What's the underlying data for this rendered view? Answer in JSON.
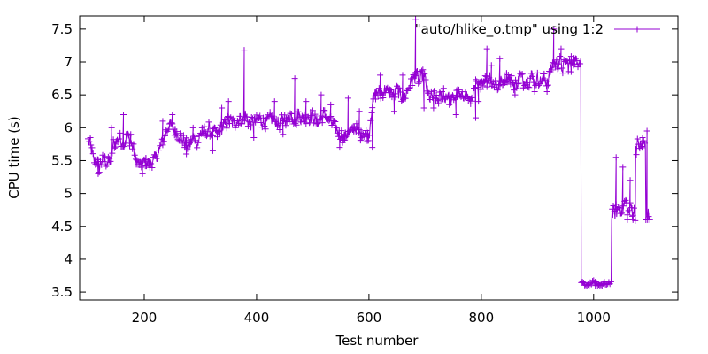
{
  "chart_data": {
    "type": "line",
    "xlabel": "Test number",
    "ylabel": "CPU time (s)",
    "xlim": [
      85,
      1150
    ],
    "ylim": [
      3.38,
      7.7
    ],
    "xticks": [
      200,
      400,
      600,
      800,
      1000
    ],
    "yticks": [
      3.5,
      4,
      4.5,
      5,
      5.5,
      6,
      6.5,
      7,
      7.5
    ],
    "ytick_labels": [
      "3.5",
      "4",
      "4.5",
      "5",
      "5.5",
      "6",
      "6.5",
      "7",
      "7.5"
    ],
    "grid": false,
    "legend_position": "top-right",
    "series": [
      {
        "name": "\"auto/hlike_o.tmp\" using 1:2",
        "color": "#9400d3",
        "marker": "plus",
        "points": [
          [
            100,
            5.8
          ],
          [
            105,
            5.7
          ],
          [
            110,
            5.5
          ],
          [
            115,
            5.5
          ],
          [
            120,
            5.4
          ],
          [
            125,
            5.5
          ],
          [
            130,
            5.5
          ],
          [
            135,
            5.45
          ],
          [
            140,
            5.5
          ],
          [
            145,
            5.75
          ],
          [
            150,
            5.8
          ],
          [
            155,
            5.85
          ],
          [
            160,
            5.8
          ],
          [
            165,
            5.75
          ],
          [
            170,
            5.9
          ],
          [
            175,
            5.8
          ],
          [
            180,
            5.7
          ],
          [
            185,
            5.5
          ],
          [
            190,
            5.45
          ],
          [
            195,
            5.4
          ],
          [
            200,
            5.5
          ],
          [
            205,
            5.5
          ],
          [
            210,
            5.45
          ],
          [
            215,
            5.5
          ],
          [
            220,
            5.55
          ],
          [
            225,
            5.6
          ],
          [
            230,
            5.75
          ],
          [
            235,
            5.85
          ],
          [
            240,
            5.95
          ],
          [
            245,
            6.05
          ],
          [
            250,
            6.0
          ],
          [
            255,
            5.95
          ],
          [
            260,
            5.9
          ],
          [
            265,
            5.85
          ],
          [
            270,
            5.8
          ],
          [
            275,
            5.75
          ],
          [
            280,
            5.7
          ],
          [
            285,
            5.8
          ],
          [
            290,
            5.85
          ],
          [
            295,
            5.75
          ],
          [
            300,
            5.9
          ],
          [
            305,
            5.95
          ],
          [
            310,
            5.9
          ],
          [
            315,
            6.0
          ],
          [
            320,
            5.9
          ],
          [
            325,
            5.95
          ],
          [
            330,
            5.9
          ],
          [
            335,
            5.95
          ],
          [
            340,
            6.0
          ],
          [
            345,
            6.05
          ],
          [
            350,
            6.1
          ],
          [
            355,
            6.1
          ],
          [
            360,
            6.05
          ],
          [
            365,
            6.1
          ],
          [
            370,
            6.15
          ],
          [
            375,
            6.1
          ],
          [
            380,
            6.2
          ],
          [
            385,
            6.1
          ],
          [
            390,
            6.05
          ],
          [
            395,
            6.1
          ],
          [
            400,
            6.1
          ],
          [
            405,
            6.15
          ],
          [
            410,
            6.1
          ],
          [
            415,
            6.05
          ],
          [
            420,
            6.1
          ],
          [
            425,
            6.15
          ],
          [
            430,
            6.1
          ],
          [
            435,
            6.1
          ],
          [
            440,
            6.05
          ],
          [
            445,
            6.1
          ],
          [
            450,
            6.15
          ],
          [
            455,
            6.1
          ],
          [
            460,
            6.2
          ],
          [
            465,
            6.15
          ],
          [
            470,
            6.1
          ],
          [
            475,
            6.2
          ],
          [
            480,
            6.15
          ],
          [
            485,
            6.1
          ],
          [
            490,
            6.2
          ],
          [
            495,
            6.15
          ],
          [
            500,
            6.2
          ],
          [
            505,
            6.1
          ],
          [
            510,
            6.1
          ],
          [
            515,
            6.15
          ],
          [
            520,
            6.2
          ],
          [
            525,
            6.15
          ],
          [
            530,
            6.1
          ],
          [
            535,
            6.05
          ],
          [
            540,
            6.0
          ],
          [
            545,
            5.95
          ],
          [
            550,
            5.9
          ],
          [
            555,
            5.85
          ],
          [
            560,
            5.9
          ],
          [
            565,
            5.9
          ],
          [
            570,
            5.95
          ],
          [
            575,
            6.0
          ],
          [
            580,
            5.95
          ],
          [
            585,
            5.9
          ],
          [
            590,
            5.95
          ],
          [
            595,
            5.9
          ],
          [
            600,
            5.9
          ],
          [
            605,
            6.3
          ],
          [
            610,
            6.5
          ],
          [
            615,
            6.55
          ],
          [
            620,
            6.5
          ],
          [
            625,
            6.55
          ],
          [
            630,
            6.6
          ],
          [
            635,
            6.5
          ],
          [
            640,
            6.55
          ],
          [
            645,
            6.5
          ],
          [
            650,
            6.6
          ],
          [
            655,
            6.5
          ],
          [
            660,
            6.45
          ],
          [
            665,
            6.5
          ],
          [
            670,
            6.6
          ],
          [
            675,
            6.7
          ],
          [
            680,
            6.75
          ],
          [
            685,
            6.8
          ],
          [
            690,
            6.7
          ],
          [
            695,
            6.8
          ],
          [
            700,
            6.75
          ],
          [
            705,
            6.5
          ],
          [
            710,
            6.45
          ],
          [
            715,
            6.5
          ],
          [
            720,
            6.4
          ],
          [
            725,
            6.45
          ],
          [
            730,
            6.5
          ],
          [
            735,
            6.45
          ],
          [
            740,
            6.5
          ],
          [
            745,
            6.4
          ],
          [
            750,
            6.45
          ],
          [
            755,
            6.5
          ],
          [
            760,
            6.5
          ],
          [
            765,
            6.45
          ],
          [
            770,
            6.55
          ],
          [
            775,
            6.5
          ],
          [
            780,
            6.4
          ],
          [
            785,
            6.5
          ],
          [
            790,
            6.65
          ],
          [
            795,
            6.6
          ],
          [
            800,
            6.7
          ],
          [
            805,
            6.75
          ],
          [
            810,
            6.7
          ],
          [
            815,
            6.8
          ],
          [
            820,
            6.65
          ],
          [
            825,
            6.7
          ],
          [
            830,
            6.6
          ],
          [
            835,
            6.7
          ],
          [
            840,
            6.75
          ],
          [
            845,
            6.8
          ],
          [
            850,
            6.75
          ],
          [
            855,
            6.7
          ],
          [
            860,
            6.65
          ],
          [
            865,
            6.7
          ],
          [
            870,
            6.8
          ],
          [
            875,
            6.7
          ],
          [
            880,
            6.75
          ],
          [
            885,
            6.7
          ],
          [
            890,
            6.8
          ],
          [
            895,
            6.7
          ],
          [
            900,
            6.75
          ],
          [
            905,
            6.7
          ],
          [
            910,
            6.75
          ],
          [
            915,
            6.7
          ],
          [
            920,
            6.75
          ],
          [
            925,
            6.9
          ],
          [
            930,
            7.0
          ],
          [
            935,
            6.95
          ],
          [
            940,
            7.0
          ],
          [
            945,
            6.9
          ],
          [
            950,
            7.0
          ],
          [
            955,
            6.95
          ],
          [
            960,
            7.0
          ],
          [
            965,
            7.05
          ],
          [
            970,
            7.0
          ],
          [
            975,
            7.05
          ],
          [
            978,
            3.65
          ],
          [
            985,
            3.62
          ],
          [
            990,
            3.63
          ],
          [
            995,
            3.62
          ],
          [
            1000,
            3.65
          ],
          [
            1005,
            3.62
          ],
          [
            1010,
            3.63
          ],
          [
            1015,
            3.62
          ],
          [
            1020,
            3.63
          ],
          [
            1025,
            3.62
          ],
          [
            1030,
            3.65
          ],
          [
            1032,
            4.7
          ],
          [
            1037,
            4.7
          ],
          [
            1042,
            4.75
          ],
          [
            1047,
            4.8
          ],
          [
            1052,
            4.75
          ],
          [
            1057,
            4.9
          ],
          [
            1062,
            4.7
          ],
          [
            1067,
            4.8
          ],
          [
            1072,
            4.7
          ],
          [
            1075,
            5.7
          ],
          [
            1080,
            5.75
          ],
          [
            1085,
            5.7
          ],
          [
            1090,
            5.75
          ],
          [
            1093,
            4.7
          ],
          [
            1098,
            4.65
          ]
        ],
        "spikes": [
          [
            104,
            5.85
          ],
          [
            118,
            5.3
          ],
          [
            142,
            6.0
          ],
          [
            163,
            6.2
          ],
          [
            176,
            5.9
          ],
          [
            197,
            5.3
          ],
          [
            233,
            6.1
          ],
          [
            250,
            6.2
          ],
          [
            275,
            5.6
          ],
          [
            287,
            6.0
          ],
          [
            303,
            6.0
          ],
          [
            322,
            5.65
          ],
          [
            338,
            6.3
          ],
          [
            350,
            6.4
          ],
          [
            378,
            7.18
          ],
          [
            395,
            5.85
          ],
          [
            432,
            6.4
          ],
          [
            447,
            5.9
          ],
          [
            468,
            6.75
          ],
          [
            488,
            6.4
          ],
          [
            515,
            6.5
          ],
          [
            532,
            6.35
          ],
          [
            548,
            5.7
          ],
          [
            563,
            6.45
          ],
          [
            583,
            6.25
          ],
          [
            606,
            5.7
          ],
          [
            620,
            6.8
          ],
          [
            645,
            6.25
          ],
          [
            660,
            6.8
          ],
          [
            683,
            7.65
          ],
          [
            698,
            6.3
          ],
          [
            715,
            6.3
          ],
          [
            733,
            6.6
          ],
          [
            755,
            6.2
          ],
          [
            768,
            6.45
          ],
          [
            790,
            6.15
          ],
          [
            795,
            6.4
          ],
          [
            810,
            7.2
          ],
          [
            818,
            6.95
          ],
          [
            833,
            7.05
          ],
          [
            860,
            6.5
          ],
          [
            895,
            6.55
          ],
          [
            917,
            6.55
          ],
          [
            929,
            7.5
          ],
          [
            942,
            7.2
          ],
          [
            960,
            6.85
          ],
          [
            1003,
            3.6
          ],
          [
            1040,
            5.55
          ],
          [
            1052,
            5.4
          ],
          [
            1060,
            4.6
          ],
          [
            1065,
            5.2
          ],
          [
            1070,
            4.6
          ],
          [
            1087,
            5.85
          ],
          [
            1095,
            5.95
          ],
          [
            1100,
            4.6
          ]
        ]
      }
    ]
  }
}
